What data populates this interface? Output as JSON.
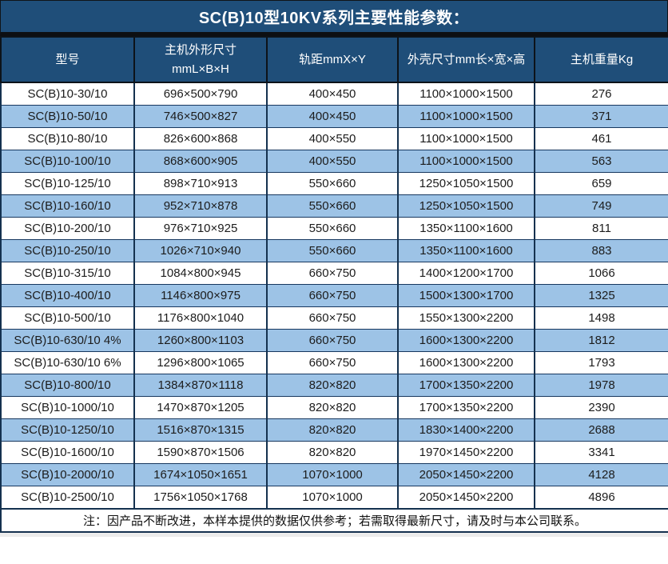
{
  "title": "SC(B)10型10KV系列主要性能参数：",
  "table": {
    "columns": [
      "型号",
      "主机外形尺寸\nmmL×B×H",
      "轨距mmX×Y",
      "外壳尺寸mm长×宽×高",
      "主机重量Kg"
    ],
    "rows": [
      [
        "SC(B)10-30/10",
        "696×500×790",
        "400×450",
        "1100×1000×1500",
        "276"
      ],
      [
        "SC(B)10-50/10",
        "746×500×827",
        "400×450",
        "1100×1000×1500",
        "371"
      ],
      [
        "SC(B)10-80/10",
        "826×600×868",
        "400×550",
        "1100×1000×1500",
        "461"
      ],
      [
        "SC(B)10-100/10",
        "868×600×905",
        "400×550",
        "1100×1000×1500",
        "563"
      ],
      [
        "SC(B)10-125/10",
        "898×710×913",
        "550×660",
        "1250×1050×1500",
        "659"
      ],
      [
        "SC(B)10-160/10",
        "952×710×878",
        "550×660",
        "1250×1050×1500",
        "749"
      ],
      [
        "SC(B)10-200/10",
        "976×710×925",
        "550×660",
        "1350×1100×1600",
        "811"
      ],
      [
        "SC(B)10-250/10",
        "1026×710×940",
        "550×660",
        "1350×1100×1600",
        "883"
      ],
      [
        "SC(B)10-315/10",
        "1084×800×945",
        "660×750",
        "1400×1200×1700",
        "1066"
      ],
      [
        "SC(B)10-400/10",
        "1146×800×975",
        "660×750",
        "1500×1300×1700",
        "1325"
      ],
      [
        "SC(B)10-500/10",
        "1176×800×1040",
        "660×750",
        "1550×1300×2200",
        "1498"
      ],
      [
        "SC(B)10-630/10 4%",
        "1260×800×1103",
        "660×750",
        "1600×1300×2200",
        "1812"
      ],
      [
        "SC(B)10-630/10 6%",
        "1296×800×1065",
        "660×750",
        "1600×1300×2200",
        "1793"
      ],
      [
        "SC(B)10-800/10",
        "1384×870×1118",
        "820×820",
        "1700×1350×2200",
        "1978"
      ],
      [
        "SC(B)10-1000/10",
        "1470×870×1205",
        "820×820",
        "1700×1350×2200",
        "2390"
      ],
      [
        "SC(B)10-1250/10",
        "1516×870×1315",
        "820×820",
        "1830×1400×2200",
        "2688"
      ],
      [
        "SC(B)10-1600/10",
        "1590×870×1506",
        "820×820",
        "1970×1450×2200",
        "3341"
      ],
      [
        "SC(B)10-2000/10",
        "1674×1050×1651",
        "1070×1000",
        "2050×1450×2200",
        "4128"
      ],
      [
        "SC(B)10-2500/10",
        "1756×1050×1768",
        "1070×1000",
        "2050×1450×2200",
        "4896"
      ]
    ]
  },
  "note": "注：因产品不断改进，本样本提供的数据仅供参考；若需取得最新尺寸，请及时与本公司联系。",
  "colors": {
    "header_bg": "#1F4E79",
    "stripe_bg": "#9DC3E6",
    "border": "#17375E",
    "title_text": "#FFFFFF"
  }
}
